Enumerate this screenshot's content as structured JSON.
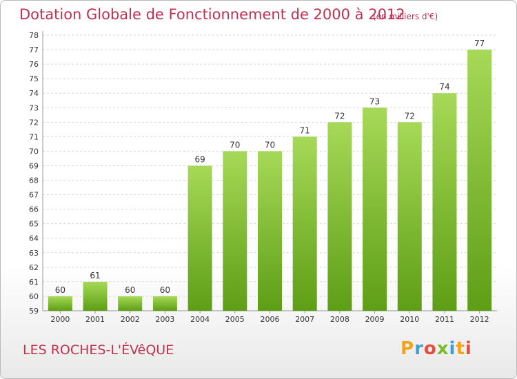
{
  "header": {
    "title": "Dotation Globale de Fonctionnement de 2000 à 2012",
    "unit": "(en milliers d'€)"
  },
  "footer": {
    "commune": "LES ROCHES-L'ÉVêQUE",
    "logo_text": "Proxiti"
  },
  "colors": {
    "title": "#c0304f",
    "bar_light": "#a6d957",
    "bar_dark": "#5e9e16",
    "grid": "#d6d6d6",
    "logo": [
      "#f5a21b",
      "#3aa0d8",
      "#e84c3d",
      "#7dbb2a",
      "#3aa0d8",
      "#f5a21b",
      "#e84c3d"
    ]
  },
  "chart_data": {
    "type": "bar",
    "categories": [
      "2000",
      "2001",
      "2002",
      "2003",
      "2004",
      "2005",
      "2006",
      "2007",
      "2008",
      "2009",
      "2010",
      "2011",
      "2012"
    ],
    "values": [
      60,
      61,
      60,
      60,
      69,
      70,
      70,
      71,
      72,
      73,
      72,
      74,
      77
    ],
    "ylim": [
      59,
      78
    ],
    "yticks": [
      59,
      60,
      61,
      62,
      63,
      64,
      65,
      66,
      67,
      68,
      69,
      70,
      71,
      72,
      73,
      74,
      75,
      76,
      77,
      78
    ],
    "grid": true
  }
}
